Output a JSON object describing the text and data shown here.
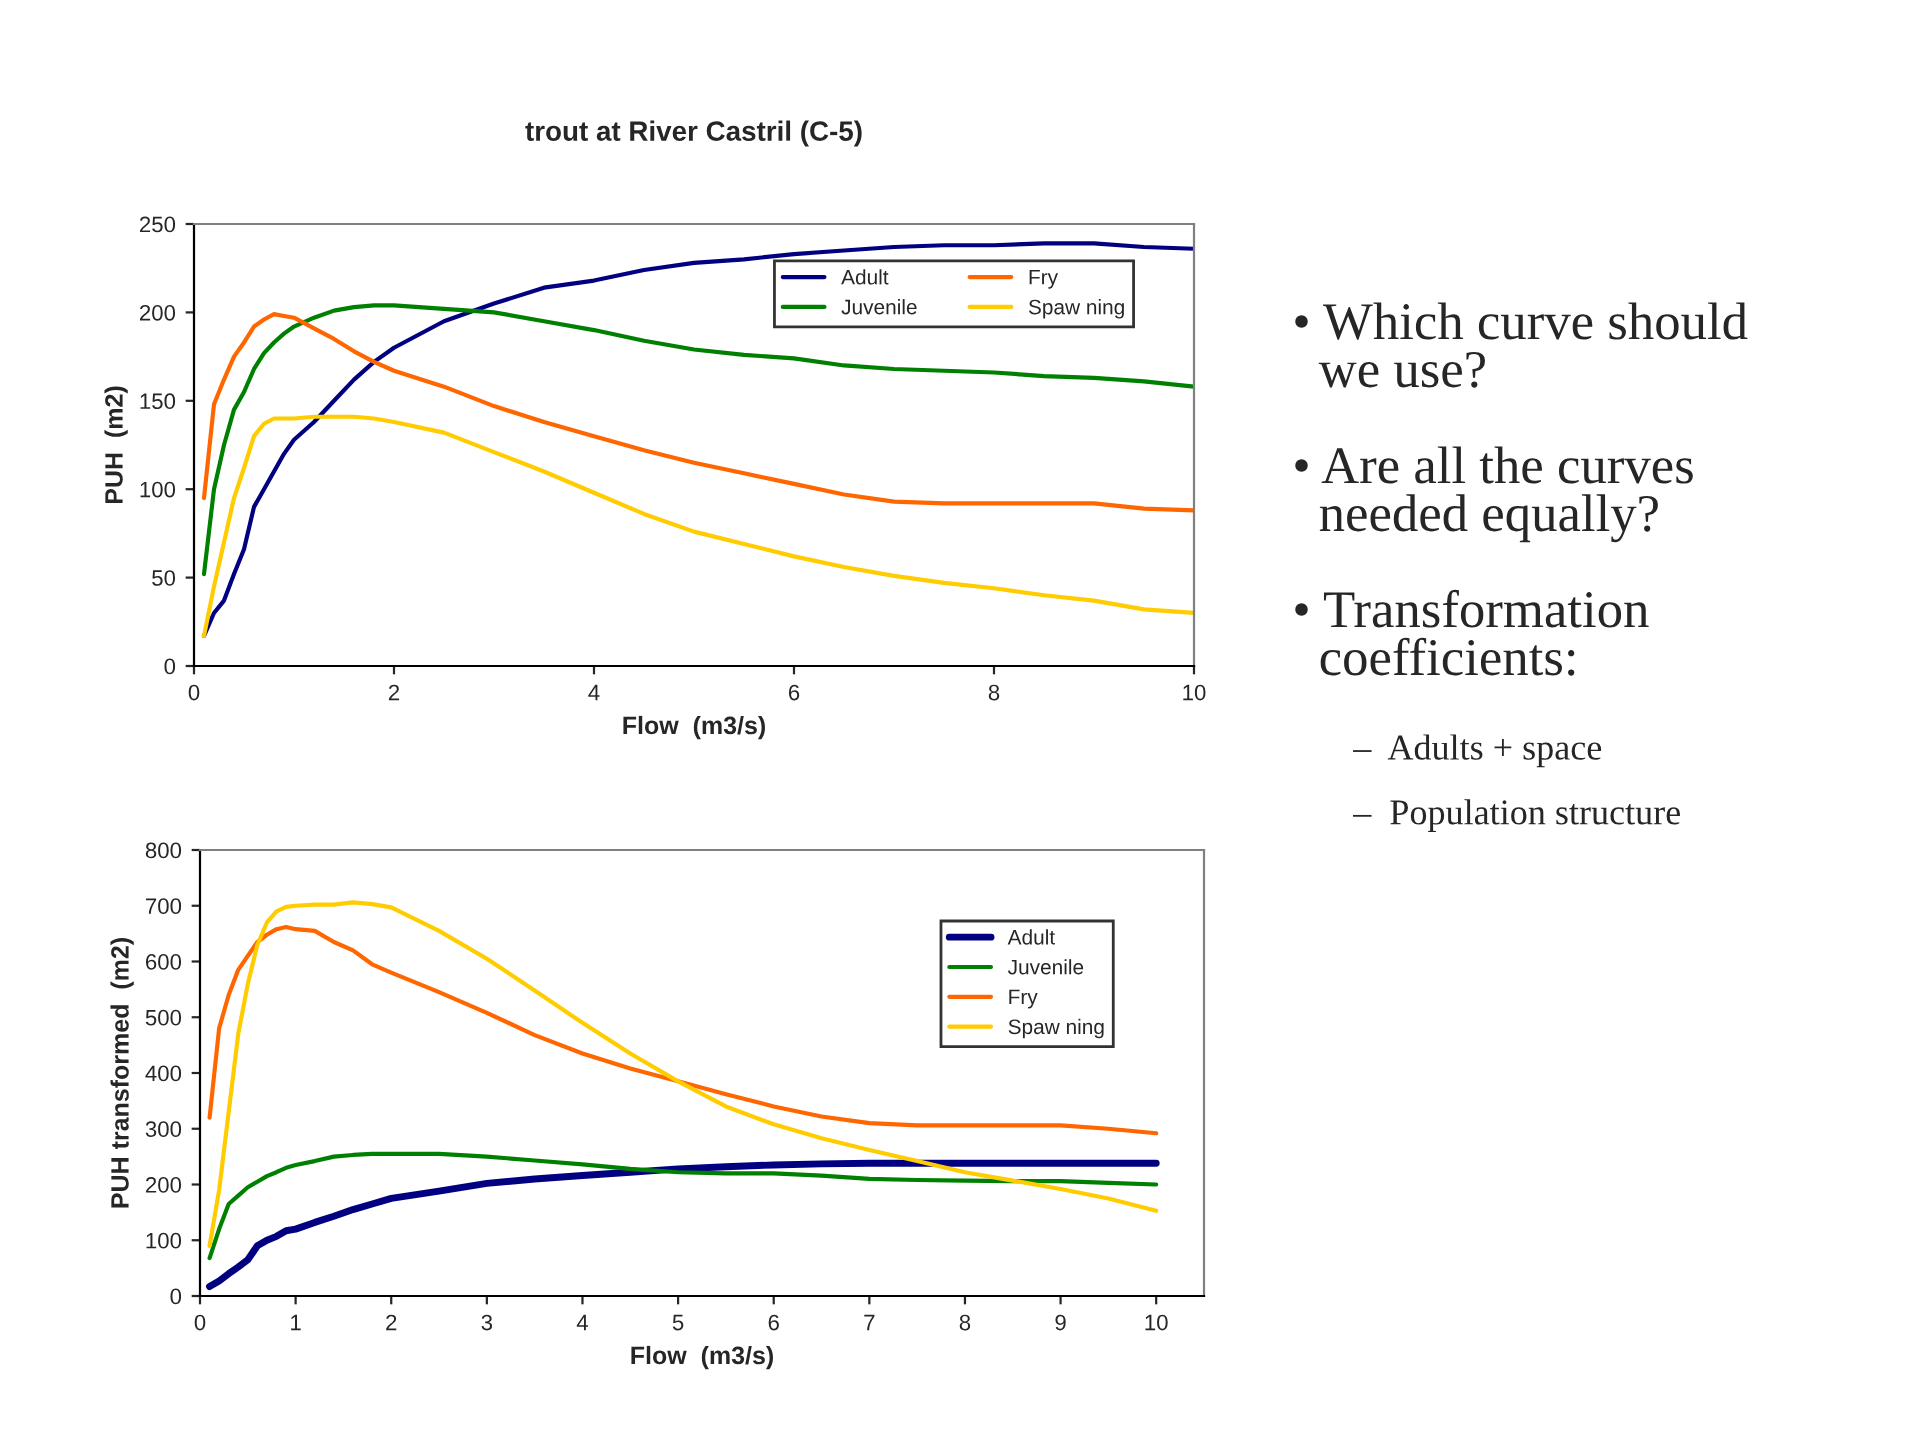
{
  "chart_data": [
    {
      "type": "line",
      "title": "trout at River Castril (C-5)",
      "xlabel": "Flow  (m3/s)",
      "ylabel": "PUH  (m2)",
      "xlim": [
        0,
        10
      ],
      "xticks": [
        0,
        2,
        4,
        6,
        8,
        10
      ],
      "ylim": [
        0,
        250
      ],
      "yticks": [
        0,
        50,
        100,
        150,
        200,
        250
      ],
      "grid": false,
      "legend": "top right",
      "marker": "none",
      "line_style": "solid",
      "x": [
        0.1,
        0.2,
        0.3,
        0.4,
        0.5,
        0.6,
        0.7,
        0.8,
        0.9,
        1,
        1.2,
        1.4,
        1.6,
        1.8,
        2,
        2.5,
        3,
        3.5,
        4,
        4.5,
        5,
        5.5,
        6,
        6.5,
        7,
        7.5,
        8,
        8.5,
        9,
        9.5,
        10
      ],
      "series": [
        {
          "name": "Adult",
          "color": "#000080",
          "values": [
            17,
            30,
            37,
            52,
            66,
            90,
            100,
            110,
            120,
            128,
            138,
            150,
            162,
            172,
            180,
            195,
            205,
            214,
            218,
            224,
            228,
            230,
            233,
            235,
            237,
            238,
            238,
            239,
            239,
            237,
            236
          ]
        },
        {
          "name": "Juvenile",
          "color": "#008000",
          "values": [
            52,
            100,
            125,
            145,
            155,
            168,
            177,
            183,
            188,
            192,
            197,
            201,
            203,
            204,
            204,
            202,
            200,
            195,
            190,
            184,
            179,
            176,
            174,
            170,
            168,
            167,
            166,
            164,
            163,
            161,
            158
          ]
        },
        {
          "name": "Fry",
          "color": "#ff6600",
          "values": [
            95,
            148,
            162,
            175,
            183,
            192,
            196,
            199,
            198,
            197,
            191,
            185,
            178,
            172,
            167,
            158,
            147,
            138,
            130,
            122,
            115,
            109,
            103,
            97,
            93,
            92,
            92,
            92,
            92,
            89,
            88
          ]
        },
        {
          "name": "Spaw ning",
          "color": "#ffcc00",
          "values": [
            17,
            45,
            70,
            95,
            112,
            130,
            137,
            140,
            140,
            140,
            141,
            141,
            141,
            140,
            138,
            132,
            121,
            110,
            98,
            86,
            76,
            69,
            62,
            56,
            51,
            47,
            44,
            40,
            37,
            32,
            30
          ]
        }
      ]
    },
    {
      "type": "line",
      "xlabel": "Flow  (m3/s)",
      "ylabel": "PUH transformed  (m2)",
      "xlim": [
        0,
        10.5
      ],
      "xticks": [
        0,
        1,
        2,
        3,
        4,
        5,
        6,
        7,
        8,
        9,
        10
      ],
      "ylim": [
        0,
        800
      ],
      "yticks": [
        0,
        100,
        200,
        300,
        400,
        500,
        600,
        700,
        800
      ],
      "grid": false,
      "legend": "right",
      "marker": "none",
      "line_style": "solid",
      "x": [
        0.1,
        0.2,
        0.3,
        0.4,
        0.5,
        0.6,
        0.7,
        0.8,
        0.9,
        1,
        1.2,
        1.4,
        1.6,
        1.8,
        2,
        2.5,
        3,
        3.5,
        4,
        4.5,
        5,
        5.5,
        6,
        6.5,
        7,
        7.5,
        8,
        8.5,
        9,
        9.5,
        10
      ],
      "series": [
        {
          "name": "Adult",
          "color": "#000080",
          "values": [
            17,
            27,
            40,
            52,
            65,
            90,
            100,
            107,
            117,
            120,
            132,
            143,
            155,
            165,
            175,
            188,
            202,
            210,
            216,
            222,
            228,
            232,
            235,
            237,
            238,
            238,
            238,
            238,
            238,
            238,
            238
          ]
        },
        {
          "name": "Juvenile",
          "color": "#008000",
          "values": [
            68,
            120,
            165,
            180,
            195,
            205,
            215,
            222,
            230,
            235,
            242,
            250,
            253,
            255,
            255,
            255,
            250,
            243,
            236,
            228,
            222,
            220,
            220,
            216,
            210,
            208,
            207,
            206,
            206,
            203,
            200
          ]
        },
        {
          "name": "Fry",
          "color": "#ff6600",
          "values": [
            320,
            480,
            540,
            585,
            610,
            635,
            648,
            658,
            662,
            658,
            655,
            635,
            620,
            595,
            580,
            545,
            508,
            468,
            435,
            408,
            385,
            362,
            340,
            322,
            310,
            306,
            306,
            306,
            306,
            300,
            292
          ]
        },
        {
          "name": "Spaw ning",
          "color": "#ffcc00",
          "values": [
            90,
            190,
            330,
            470,
            560,
            630,
            670,
            690,
            698,
            700,
            702,
            702,
            706,
            703,
            697,
            655,
            605,
            548,
            490,
            435,
            385,
            340,
            308,
            283,
            262,
            242,
            222,
            207,
            192,
            175,
            153
          ]
        }
      ]
    },
    {
      "type": "other",
      "annotations": [
        "• Which curve should\n  we use?",
        "• Are all the curves\n  needed equally?",
        "• Transformation\n  coefficients:",
        "–  Adults + space",
        "–  Population structure"
      ]
    }
  ]
}
